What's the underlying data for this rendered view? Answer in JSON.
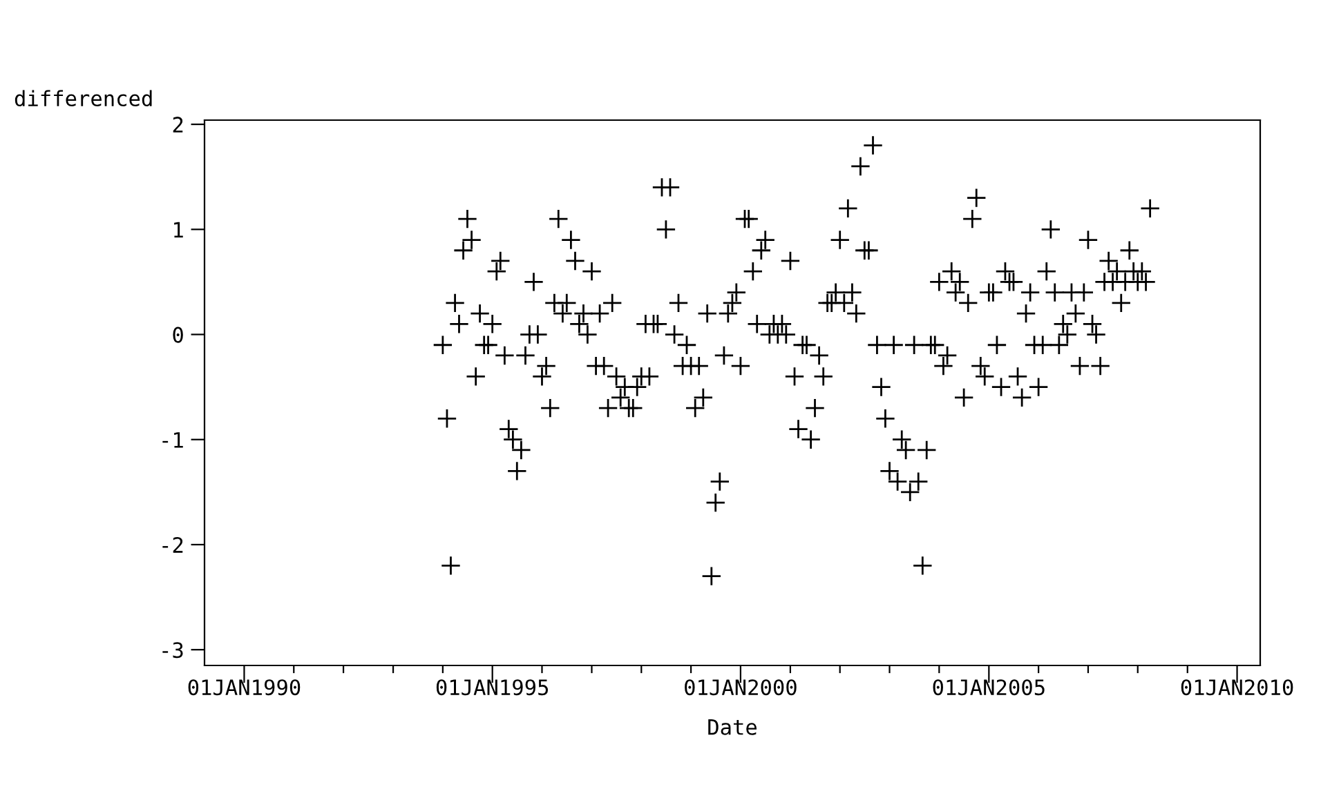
{
  "chart_data": {
    "type": "scatter",
    "xlabel": "Date",
    "ylabel": "differenced",
    "marker": "cross",
    "grid": false,
    "legend": false,
    "xlim": [
      "1989-03-15",
      "2010-06-20"
    ],
    "ylim": [
      -3.15,
      2.04
    ],
    "xticks": [
      {
        "value": "1990-01-01",
        "label": "01JAN1990"
      },
      {
        "value": "1991-01-01",
        "label": null
      },
      {
        "value": "1992-01-01",
        "label": null
      },
      {
        "value": "1993-01-01",
        "label": null
      },
      {
        "value": "1994-01-01",
        "label": null
      },
      {
        "value": "1995-01-01",
        "label": "01JAN1995"
      },
      {
        "value": "1996-01-01",
        "label": null
      },
      {
        "value": "1997-01-01",
        "label": null
      },
      {
        "value": "1998-01-01",
        "label": null
      },
      {
        "value": "1999-01-01",
        "label": null
      },
      {
        "value": "2000-01-01",
        "label": "01JAN2000"
      },
      {
        "value": "2001-01-01",
        "label": null
      },
      {
        "value": "2002-01-01",
        "label": null
      },
      {
        "value": "2003-01-01",
        "label": null
      },
      {
        "value": "2004-01-01",
        "label": null
      },
      {
        "value": "2005-01-01",
        "label": "01JAN2005"
      },
      {
        "value": "2006-01-01",
        "label": null
      },
      {
        "value": "2007-01-01",
        "label": null
      },
      {
        "value": "2008-01-01",
        "label": null
      },
      {
        "value": "2009-01-01",
        "label": null
      },
      {
        "value": "2010-01-01",
        "label": "01JAN2010"
      }
    ],
    "yticks": [
      -3,
      -2,
      -1,
      0,
      1,
      2
    ],
    "x": [
      "1994-01",
      "1994-02",
      "1994-03",
      "1994-04",
      "1994-05",
      "1994-06",
      "1994-07",
      "1994-08",
      "1994-09",
      "1994-10",
      "1994-11",
      "1994-12",
      "1995-01",
      "1995-02",
      "1995-03",
      "1995-04",
      "1995-05",
      "1995-06",
      "1995-07",
      "1995-08",
      "1995-09",
      "1995-10",
      "1995-11",
      "1995-12",
      "1996-01",
      "1996-02",
      "1996-03",
      "1996-04",
      "1996-05",
      "1996-06",
      "1996-07",
      "1996-08",
      "1996-09",
      "1996-10",
      "1996-11",
      "1996-12",
      "1997-01",
      "1997-02",
      "1997-03",
      "1997-04",
      "1997-05",
      "1997-06",
      "1997-07",
      "1997-08",
      "1997-09",
      "1997-10",
      "1997-11",
      "1997-12",
      "1998-01",
      "1998-02",
      "1998-03",
      "1998-04",
      "1998-05",
      "1998-06",
      "1998-07",
      "1998-08",
      "1998-09",
      "1998-10",
      "1998-11",
      "1998-12",
      "1999-01",
      "1999-02",
      "1999-03",
      "1999-04",
      "1999-05",
      "1999-06",
      "1999-07",
      "1999-08",
      "1999-09",
      "1999-10",
      "1999-11",
      "1999-12",
      "2000-01",
      "2000-02",
      "2000-03",
      "2000-04",
      "2000-05",
      "2000-06",
      "2000-07",
      "2000-08",
      "2000-09",
      "2000-10",
      "2000-11",
      "2000-12",
      "2001-01",
      "2001-02",
      "2001-03",
      "2001-04",
      "2001-05",
      "2001-06",
      "2001-07",
      "2001-08",
      "2001-09",
      "2001-10",
      "2001-11",
      "2001-12",
      "2002-01",
      "2002-02",
      "2002-03",
      "2002-04",
      "2002-05",
      "2002-06",
      "2002-07",
      "2002-08",
      "2002-09",
      "2002-10",
      "2002-11",
      "2002-12",
      "2003-01",
      "2003-02",
      "2003-03",
      "2003-04",
      "2003-05",
      "2003-06",
      "2003-07",
      "2003-08",
      "2003-09",
      "2003-10",
      "2003-11",
      "2003-12",
      "2004-01",
      "2004-02",
      "2004-03",
      "2004-04",
      "2004-05",
      "2004-06",
      "2004-07",
      "2004-08",
      "2004-09",
      "2004-10",
      "2004-11",
      "2004-12",
      "2005-01",
      "2005-02",
      "2005-03",
      "2005-04",
      "2005-05",
      "2005-06",
      "2005-07",
      "2005-08",
      "2005-09",
      "2005-10",
      "2005-11",
      "2005-12",
      "2006-01",
      "2006-02",
      "2006-03",
      "2006-04",
      "2006-05",
      "2006-06",
      "2006-07",
      "2006-08",
      "2006-09",
      "2006-10",
      "2006-11",
      "2006-12",
      "2007-01",
      "2007-02",
      "2007-03",
      "2007-04",
      "2007-05",
      "2007-06",
      "2007-07",
      "2007-08",
      "2007-09",
      "2007-10",
      "2007-11",
      "2007-12",
      "2008-01",
      "2008-02",
      "2008-03",
      "2008-04"
    ],
    "series": [
      {
        "color": "#000000",
        "values": [
          -0.1,
          -0.8,
          -2.2,
          0.3,
          0.1,
          0.8,
          1.1,
          0.9,
          -0.4,
          0.2,
          -0.1,
          -0.1,
          0.1,
          0.6,
          0.7,
          -0.2,
          -0.9,
          -1.0,
          -1.3,
          -1.1,
          -0.2,
          0,
          0.5,
          0,
          -0.4,
          -0.3,
          -0.7,
          0.3,
          1.1,
          0.2,
          0.3,
          0.9,
          0.7,
          0.1,
          0.2,
          0,
          0.6,
          -0.3,
          0.2,
          -0.3,
          -0.7,
          0.3,
          -0.4,
          -0.6,
          -0.5,
          -0.7,
          -0.7,
          -0.5,
          -0.4,
          0.1,
          -0.4,
          0.1,
          0.1,
          1.4,
          1.0,
          1.4,
          0,
          0.3,
          -0.3,
          -0.1,
          -0.3,
          -0.7,
          -0.3,
          -0.6,
          0.2,
          -2.3,
          -1.6,
          -1.4,
          -0.2,
          0.2,
          0.3,
          0.4,
          -0.3,
          1.1,
          1.1,
          0.6,
          0.1,
          0.8,
          0.9,
          0,
          0.1,
          0,
          0.1,
          0,
          0.7,
          -0.4,
          -0.9,
          -0.1,
          -0.1,
          -1.0,
          -0.7,
          -0.2,
          -0.4,
          0.3,
          0.3,
          0.4,
          0.9,
          0.3,
          1.2,
          0.4,
          0.2,
          1.6,
          0.8,
          0.8,
          1.8,
          -0.1,
          -0.5,
          -0.8,
          -1.3,
          -0.1,
          -1.4,
          -1.0,
          -1.1,
          -1.5,
          -0.1,
          -1.4,
          -2.2,
          -1.1,
          -0.1,
          -0.1,
          0.5,
          -0.3,
          -0.2,
          0.6,
          0.4,
          0.5,
          -0.6,
          0.3,
          1.1,
          1.3,
          -0.3,
          -0.4,
          0.4,
          0.4,
          -0.1,
          -0.5,
          0.6,
          0.5,
          0.5,
          -0.4,
          -0.6,
          0.2,
          0.4,
          -0.1,
          -0.5,
          -0.1,
          0.6,
          1.0,
          0.4,
          -0.1,
          0.1,
          0,
          0.4,
          0.2,
          -0.3,
          0.4,
          0.9,
          0.1,
          0,
          -0.3,
          0.5,
          0.7,
          0.5,
          0.6,
          0.3,
          0.5,
          0.8,
          0.6,
          0.5,
          0.6,
          0.5,
          1.2
        ]
      }
    ]
  }
}
